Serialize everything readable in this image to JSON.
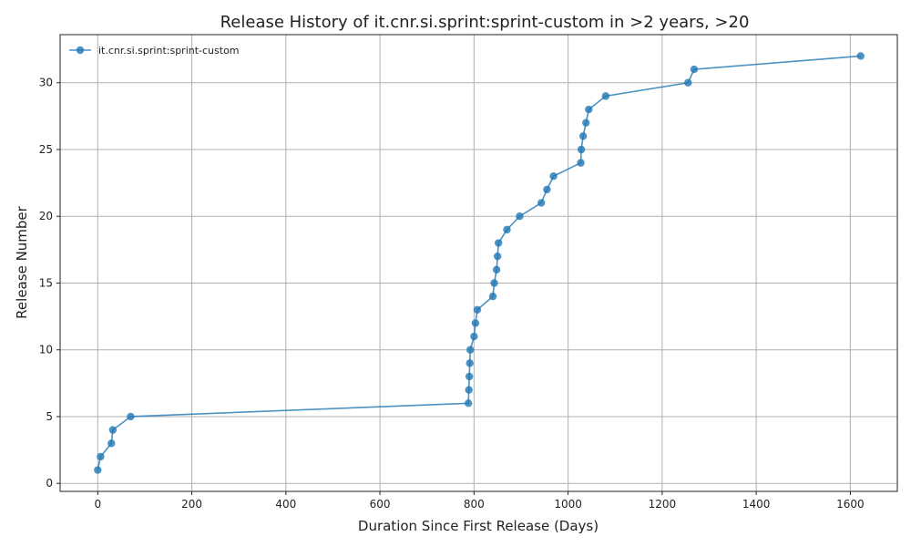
{
  "chart_data": {
    "type": "line",
    "title": "Release History of it.cnr.si.sprint:sprint-custom in >2 years, >20",
    "xlabel": "Duration Since First Release (Days)",
    "ylabel": "Release Number",
    "xlim": [
      -80,
      1700
    ],
    "ylim": [
      -0.6,
      33.6
    ],
    "xticks": [
      0,
      200,
      400,
      600,
      800,
      1000,
      1200,
      1400,
      1600
    ],
    "yticks": [
      0,
      5,
      10,
      15,
      20,
      25,
      30
    ],
    "grid": true,
    "legend_position": "top-left",
    "series": [
      {
        "name": "it.cnr.si.sprint:sprint-custom",
        "color": "#1f77b4",
        "marker": "circle",
        "x": [
          0,
          6,
          29,
          32,
          70,
          788,
          789,
          790,
          791,
          792,
          800,
          803,
          807,
          840,
          843,
          848,
          850,
          852,
          870,
          897,
          943,
          955,
          969,
          1027,
          1028,
          1032,
          1038,
          1044,
          1080,
          1255,
          1268,
          1622
        ],
        "y": [
          1,
          2,
          3,
          4,
          5,
          6,
          7,
          8,
          9,
          10,
          11,
          12,
          13,
          14,
          15,
          16,
          17,
          18,
          19,
          20,
          21,
          22,
          23,
          24,
          25,
          26,
          27,
          28,
          29,
          30,
          31,
          32
        ]
      }
    ]
  }
}
